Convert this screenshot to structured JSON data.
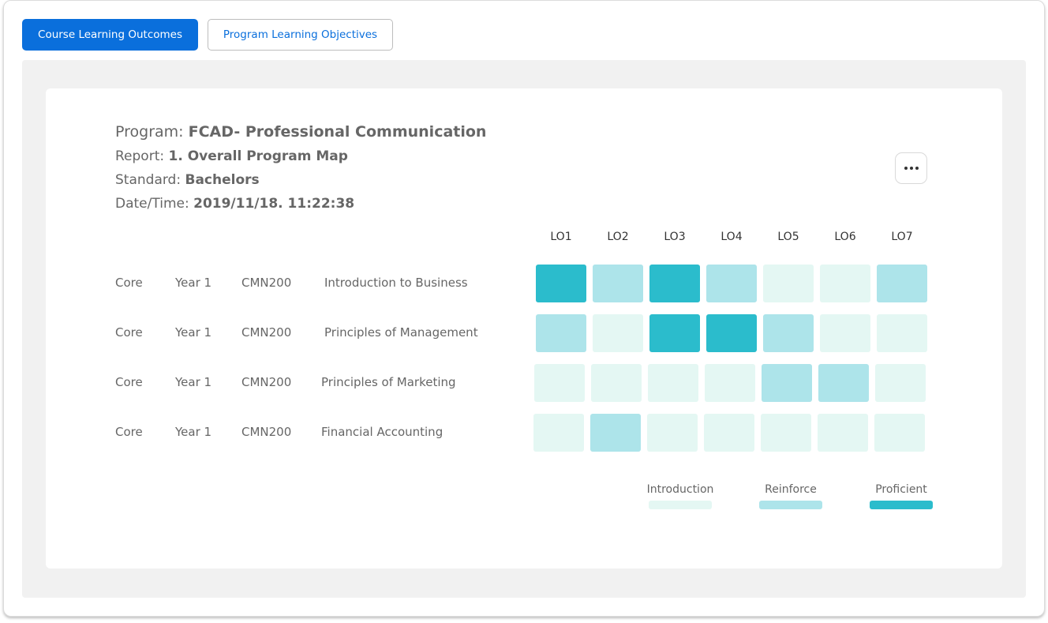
{
  "tabs": {
    "course_outcomes": "Course Learning Outcomes",
    "program_objectives": "Program Learning Objectives"
  },
  "report": {
    "program_label": "Program:",
    "program_value": "FCAD- Professional Communication",
    "report_label": "Report:",
    "report_value": "1. Overall Program Map",
    "standard_label": "Standard:",
    "standard_value": "Bachelors",
    "date_label": "Date/Time:",
    "date_value": "2019/11/18. 11:22:38"
  },
  "more_icon": "more-horizontal-icon",
  "outcomes": [
    "LO1",
    "LO2",
    "LO3",
    "LO4",
    "LO5",
    "LO6",
    "LO7"
  ],
  "courses": [
    {
      "type": "Core",
      "year": "Year 1",
      "code": "CMN200",
      "name": "Introduction to Business",
      "levels": [
        "Proficient",
        "Reinforce",
        "Proficient",
        "Reinforce",
        "Introduction",
        "Introduction",
        "Reinforce"
      ]
    },
    {
      "type": "Core",
      "year": "Year 1",
      "code": "CMN200",
      "name": "Principles of Management",
      "levels": [
        "Reinforce",
        "Introduction",
        "Proficient",
        "Proficient",
        "Reinforce",
        "Introduction",
        "Introduction"
      ]
    },
    {
      "type": "Core",
      "year": "Year 1",
      "code": "CMN200",
      "name": "Principles of Marketing",
      "levels": [
        "Introduction",
        "Introduction",
        "Introduction",
        "Introduction",
        "Reinforce",
        "Reinforce",
        "Introduction"
      ]
    },
    {
      "type": "Core",
      "year": "Year 1",
      "code": "CMN200",
      "name": "Financial Accounting",
      "levels": [
        "Introduction",
        "Reinforce",
        "Introduction",
        "Introduction",
        "Introduction",
        "Introduction",
        "Introduction"
      ]
    }
  ],
  "legend": [
    {
      "label": "Introduction",
      "color": "#e4f7f3"
    },
    {
      "label": "Reinforce",
      "color": "#ade4ea"
    },
    {
      "label": "Proficient",
      "color": "#2bbccc"
    }
  ],
  "colors": {
    "accent": "#0a6fdc",
    "Introduction": "#e4f7f3",
    "Reinforce": "#ade4ea",
    "Proficient": "#2bbccc"
  }
}
